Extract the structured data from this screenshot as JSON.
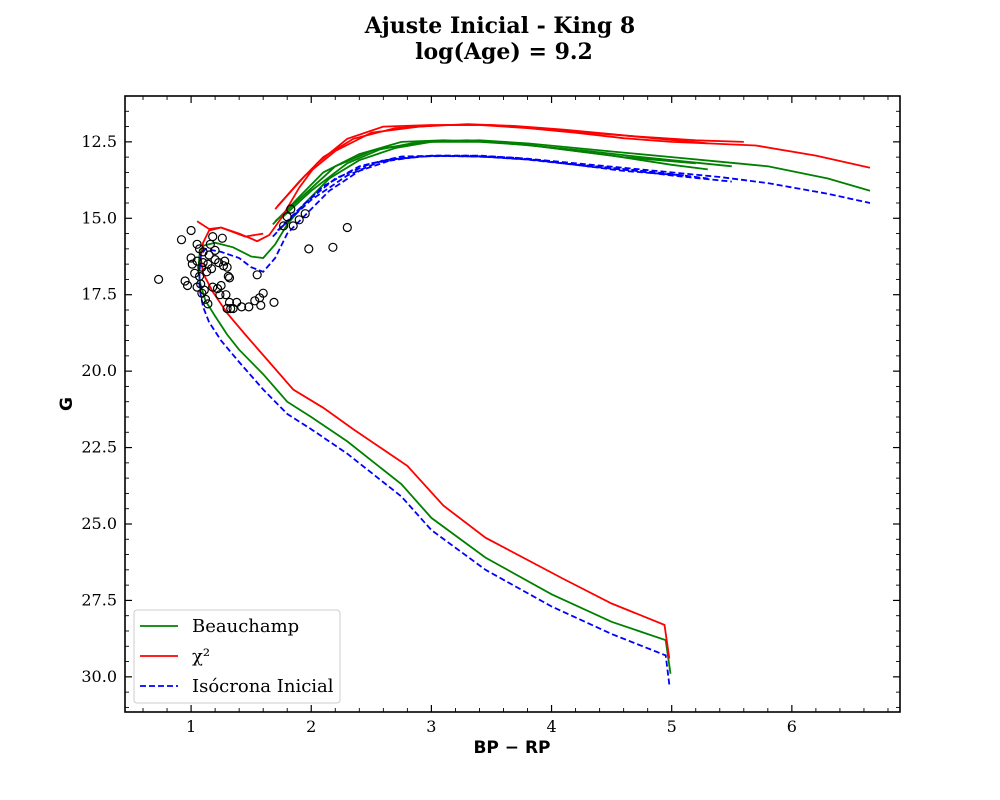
{
  "chart_data": {
    "type": "line",
    "title": "Ajuste Inicial - King 8",
    "subtitle": "log(Age) = 9.2",
    "xlabel": "BP − RP",
    "ylabel": "G",
    "xlim": [
      0.45,
      6.9
    ],
    "ylim": [
      31.15,
      11.0
    ],
    "y_inverted": true,
    "xticks": [
      1,
      2,
      3,
      4,
      5,
      6
    ],
    "yticks": [
      12.5,
      15.0,
      17.5,
      20.0,
      22.5,
      25.0,
      27.5,
      30.0
    ],
    "ytick_labels": [
      "12.5",
      "15.0",
      "17.5",
      "20.0",
      "22.5",
      "25.0",
      "27.5",
      "30.0"
    ],
    "xtick_labels": [
      "1",
      "2",
      "3",
      "4",
      "5",
      "6"
    ],
    "grid": false,
    "legend_position": "lower-left",
    "series": [
      {
        "name": "Beauchamp",
        "color": "#008000",
        "dash": "solid",
        "segments": [
          [
            [
              4.99,
              29.9
            ],
            [
              4.95,
              28.8
            ],
            [
              4.5,
              28.2
            ],
            [
              4.0,
              27.3
            ],
            [
              3.45,
              26.1
            ],
            [
              3.0,
              24.8
            ],
            [
              2.75,
              23.7
            ],
            [
              2.3,
              22.3
            ],
            [
              2.0,
              21.5
            ],
            [
              1.8,
              21.0
            ],
            [
              1.6,
              20.1
            ],
            [
              1.4,
              19.3
            ],
            [
              1.3,
              18.8
            ],
            [
              1.2,
              18.2
            ],
            [
              1.12,
              17.7
            ],
            [
              1.08,
              17.2
            ],
            [
              1.06,
              16.7
            ],
            [
              1.07,
              16.2
            ],
            [
              1.1,
              15.9
            ],
            [
              1.2,
              15.8
            ],
            [
              1.35,
              15.95
            ],
            [
              1.5,
              16.25
            ],
            [
              1.6,
              16.3
            ],
            [
              1.7,
              15.85
            ],
            [
              1.8,
              15.2
            ],
            [
              1.95,
              14.5
            ],
            [
              2.15,
              13.7
            ],
            [
              2.4,
              13.1
            ],
            [
              2.7,
              12.7
            ],
            [
              3.0,
              12.5
            ],
            [
              3.4,
              12.45
            ],
            [
              3.8,
              12.55
            ],
            [
              4.2,
              12.7
            ],
            [
              4.6,
              12.85
            ],
            [
              5.0,
              13.0
            ],
            [
              5.4,
              13.15
            ],
            [
              5.8,
              13.3
            ],
            [
              6.3,
              13.7
            ],
            [
              6.65,
              14.1
            ]
          ],
          [
            [
              1.68,
              15.2
            ],
            [
              1.9,
              14.3
            ],
            [
              2.1,
              13.5
            ],
            [
              2.4,
              12.9
            ],
            [
              2.75,
              12.5
            ],
            [
              3.1,
              12.45
            ],
            [
              3.5,
              12.5
            ],
            [
              3.9,
              12.65
            ],
            [
              4.3,
              12.8
            ],
            [
              4.7,
              12.98
            ],
            [
              5.0,
              13.1
            ],
            [
              5.5,
              13.3
            ]
          ],
          [
            [
              1.7,
              15.1
            ],
            [
              1.95,
              14.2
            ],
            [
              2.2,
              13.3
            ],
            [
              2.5,
              12.8
            ],
            [
              2.9,
              12.5
            ],
            [
              3.3,
              12.45
            ],
            [
              3.7,
              12.55
            ],
            [
              4.1,
              12.75
            ],
            [
              4.5,
              12.95
            ],
            [
              5.0,
              13.25
            ],
            [
              5.3,
              13.4
            ]
          ],
          [
            [
              1.75,
              15.0
            ],
            [
              2.0,
              14.1
            ],
            [
              2.3,
              13.2
            ],
            [
              2.6,
              12.7
            ],
            [
              3.0,
              12.5
            ],
            [
              3.4,
              12.5
            ],
            [
              3.8,
              12.6
            ],
            [
              4.2,
              12.8
            ],
            [
              4.6,
              13.0
            ],
            [
              5.2,
              13.2
            ]
          ]
        ]
      },
      {
        "name": "χ²",
        "color": "#ff0000",
        "dash": "solid",
        "segments": [
          [
            [
              4.98,
              29.4
            ],
            [
              4.94,
              28.3
            ],
            [
              4.5,
              27.6
            ],
            [
              4.1,
              26.8
            ],
            [
              3.45,
              25.45
            ],
            [
              3.1,
              24.4
            ],
            [
              2.8,
              23.1
            ],
            [
              2.35,
              21.9
            ],
            [
              2.1,
              21.2
            ],
            [
              1.85,
              20.6
            ],
            [
              1.65,
              19.7
            ],
            [
              1.45,
              18.8
            ],
            [
              1.3,
              18.1
            ],
            [
              1.18,
              17.4
            ],
            [
              1.1,
              16.8
            ],
            [
              1.08,
              16.3
            ],
            [
              1.1,
              15.8
            ],
            [
              1.15,
              15.4
            ],
            [
              1.25,
              15.3
            ],
            [
              1.4,
              15.5
            ],
            [
              1.55,
              15.75
            ],
            [
              1.65,
              15.55
            ],
            [
              1.75,
              15.0
            ],
            [
              1.9,
              14.0
            ],
            [
              2.05,
              13.2
            ],
            [
              2.3,
              12.4
            ],
            [
              2.6,
              12.0
            ],
            [
              3.0,
              11.95
            ],
            [
              3.4,
              11.95
            ],
            [
              3.8,
              12.05
            ],
            [
              4.2,
              12.2
            ],
            [
              4.6,
              12.38
            ],
            [
              5.0,
              12.5
            ],
            [
              5.3,
              12.55
            ],
            [
              5.7,
              12.62
            ],
            [
              6.2,
              12.95
            ],
            [
              6.65,
              13.35
            ]
          ],
          [
            [
              1.05,
              15.1
            ],
            [
              1.15,
              15.35
            ],
            [
              1.25,
              15.3
            ],
            [
              1.45,
              15.6
            ],
            [
              1.6,
              15.5
            ]
          ],
          [
            [
              1.7,
              14.7
            ],
            [
              1.9,
              13.8
            ],
            [
              2.1,
              13.0
            ],
            [
              2.35,
              12.4
            ],
            [
              2.7,
              12.05
            ],
            [
              3.1,
              11.95
            ],
            [
              3.5,
              11.95
            ],
            [
              3.9,
              12.05
            ],
            [
              4.3,
              12.2
            ],
            [
              4.7,
              12.32
            ],
            [
              5.2,
              12.45
            ],
            [
              5.6,
              12.5
            ]
          ],
          [
            [
              1.72,
              14.6
            ],
            [
              1.95,
              13.6
            ],
            [
              2.2,
              12.8
            ],
            [
              2.5,
              12.2
            ],
            [
              2.9,
              12.0
            ],
            [
              3.3,
              11.92
            ],
            [
              3.7,
              11.98
            ],
            [
              4.1,
              12.1
            ],
            [
              4.5,
              12.25
            ],
            [
              4.9,
              12.4
            ],
            [
              5.3,
              12.55
            ]
          ]
        ]
      },
      {
        "name": "Isócrona Inicial",
        "color": "#0000ff",
        "dash": "dashed",
        "segments": [
          [
            [
              4.98,
              30.25
            ],
            [
              4.95,
              29.3
            ],
            [
              4.5,
              28.6
            ],
            [
              4.0,
              27.7
            ],
            [
              3.45,
              26.5
            ],
            [
              3.0,
              25.2
            ],
            [
              2.75,
              24.1
            ],
            [
              2.3,
              22.7
            ],
            [
              2.0,
              21.9
            ],
            [
              1.8,
              21.4
            ],
            [
              1.6,
              20.6
            ],
            [
              1.4,
              19.7
            ],
            [
              1.25,
              19.0
            ],
            [
              1.15,
              18.4
            ],
            [
              1.1,
              17.9
            ],
            [
              1.07,
              17.3
            ],
            [
              1.07,
              16.8
            ],
            [
              1.08,
              16.2
            ],
            [
              1.12,
              16.0
            ],
            [
              1.25,
              16.1
            ],
            [
              1.4,
              16.3
            ],
            [
              1.5,
              16.6
            ],
            [
              1.6,
              16.75
            ],
            [
              1.7,
              16.3
            ],
            [
              1.8,
              15.5
            ],
            [
              1.95,
              14.9
            ],
            [
              2.15,
              14.1
            ],
            [
              2.4,
              13.45
            ],
            [
              2.7,
              13.05
            ],
            [
              3.0,
              12.95
            ],
            [
              3.4,
              12.95
            ],
            [
              3.8,
              13.05
            ],
            [
              4.2,
              13.2
            ],
            [
              4.6,
              13.35
            ],
            [
              5.0,
              13.5
            ],
            [
              5.4,
              13.65
            ],
            [
              5.8,
              13.85
            ],
            [
              6.3,
              14.2
            ],
            [
              6.65,
              14.5
            ]
          ],
          [
            [
              1.68,
              15.6
            ],
            [
              1.9,
              14.7
            ],
            [
              2.1,
              13.95
            ],
            [
              2.4,
              13.3
            ],
            [
              2.75,
              12.98
            ],
            [
              3.1,
              12.95
            ],
            [
              3.5,
              13.0
            ],
            [
              3.9,
              13.1
            ],
            [
              4.3,
              13.3
            ],
            [
              4.7,
              13.45
            ],
            [
              5.0,
              13.6
            ],
            [
              5.5,
              13.8
            ]
          ],
          [
            [
              1.72,
              15.4
            ],
            [
              1.95,
              14.5
            ],
            [
              2.2,
              13.7
            ],
            [
              2.5,
              13.2
            ],
            [
              2.9,
              12.98
            ],
            [
              3.3,
              12.95
            ],
            [
              3.7,
              13.02
            ],
            [
              4.1,
              13.2
            ],
            [
              4.5,
              13.35
            ],
            [
              5.0,
              13.55
            ],
            [
              5.3,
              13.7
            ]
          ],
          [
            [
              1.75,
              15.3
            ],
            [
              2.0,
              14.4
            ],
            [
              2.3,
              13.6
            ],
            [
              2.6,
              13.1
            ],
            [
              3.0,
              12.96
            ],
            [
              3.4,
              12.98
            ],
            [
              3.8,
              13.08
            ],
            [
              4.2,
              13.25
            ],
            [
              4.6,
              13.45
            ],
            [
              5.1,
              13.6
            ]
          ]
        ]
      }
    ],
    "scatter": {
      "marker": "open-circle",
      "color": "#000000",
      "points": [
        [
          0.73,
          17.0
        ],
        [
          0.92,
          15.7
        ],
        [
          0.95,
          17.05
        ],
        [
          0.97,
          17.2
        ],
        [
          1.0,
          15.4
        ],
        [
          1.0,
          16.3
        ],
        [
          1.01,
          16.5
        ],
        [
          1.03,
          16.8
        ],
        [
          1.05,
          15.85
        ],
        [
          1.05,
          16.4
        ],
        [
          1.05,
          17.25
        ],
        [
          1.07,
          16.0
        ],
        [
          1.07,
          16.9
        ],
        [
          1.08,
          17.15
        ],
        [
          1.09,
          16.6
        ],
        [
          1.09,
          17.45
        ],
        [
          1.1,
          16.1
        ],
        [
          1.1,
          16.45
        ],
        [
          1.11,
          17.35
        ],
        [
          1.12,
          17.65
        ],
        [
          1.13,
          16.75
        ],
        [
          1.14,
          16.5
        ],
        [
          1.14,
          17.8
        ],
        [
          1.15,
          16.2
        ],
        [
          1.16,
          15.85
        ],
        [
          1.17,
          16.65
        ],
        [
          1.18,
          15.6
        ],
        [
          1.18,
          17.25
        ],
        [
          1.2,
          16.05
        ],
        [
          1.2,
          16.35
        ],
        [
          1.22,
          17.3
        ],
        [
          1.23,
          16.45
        ],
        [
          1.24,
          17.5
        ],
        [
          1.25,
          17.2
        ],
        [
          1.26,
          15.65
        ],
        [
          1.27,
          16.55
        ],
        [
          1.28,
          16.4
        ],
        [
          1.29,
          17.5
        ],
        [
          1.3,
          16.6
        ],
        [
          1.3,
          17.95
        ],
        [
          1.31,
          16.9
        ],
        [
          1.32,
          17.75
        ],
        [
          1.32,
          16.95
        ],
        [
          1.33,
          17.95
        ],
        [
          1.35,
          17.95
        ],
        [
          1.38,
          17.75
        ],
        [
          1.42,
          17.9
        ],
        [
          1.48,
          17.9
        ],
        [
          1.53,
          17.7
        ],
        [
          1.55,
          16.85
        ],
        [
          1.57,
          17.6
        ],
        [
          1.58,
          17.85
        ],
        [
          1.6,
          17.45
        ],
        [
          1.69,
          17.75
        ],
        [
          1.77,
          15.25
        ],
        [
          1.8,
          14.95
        ],
        [
          1.83,
          14.7
        ],
        [
          1.85,
          15.25
        ],
        [
          1.9,
          15.05
        ],
        [
          1.95,
          14.85
        ],
        [
          1.98,
          16.0
        ],
        [
          2.18,
          15.95
        ],
        [
          2.3,
          15.3
        ]
      ]
    }
  }
}
